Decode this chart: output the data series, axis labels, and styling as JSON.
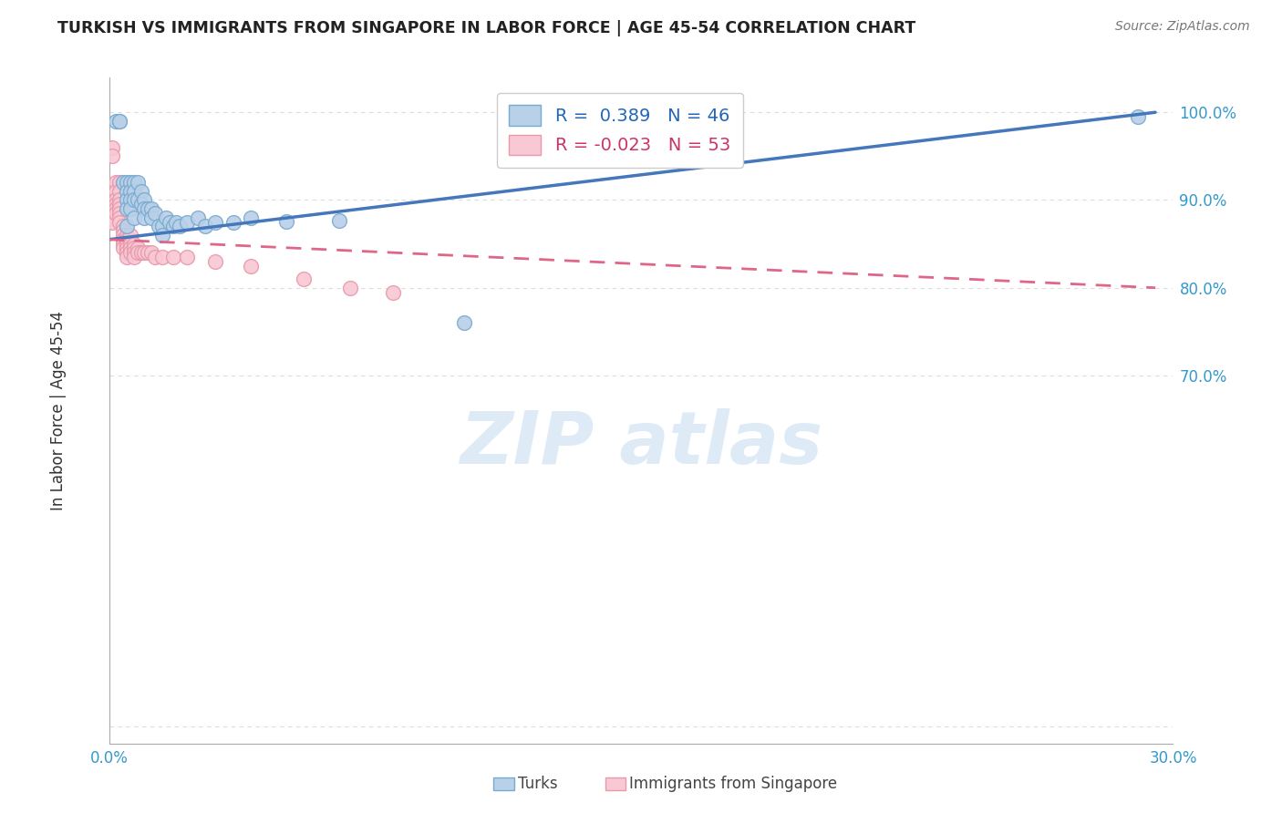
{
  "title": "TURKISH VS IMMIGRANTS FROM SINGAPORE IN LABOR FORCE | AGE 45-54 CORRELATION CHART",
  "source": "Source: ZipAtlas.com",
  "ylabel": "In Labor Force | Age 45-54",
  "xlim": [
    0.0,
    0.3
  ],
  "ylim": [
    0.28,
    1.04
  ],
  "blue_color": "#b8d0e8",
  "blue_edge": "#7aaad0",
  "blue_line": "#4477bb",
  "pink_color": "#f8c8d4",
  "pink_edge": "#e899aa",
  "pink_line": "#e06688",
  "watermark_color": "#c8dff0",
  "turks_x": [
    0.002,
    0.003,
    0.003,
    0.004,
    0.005,
    0.005,
    0.005,
    0.005,
    0.005,
    0.006,
    0.006,
    0.006,
    0.006,
    0.007,
    0.007,
    0.007,
    0.007,
    0.008,
    0.008,
    0.009,
    0.009,
    0.01,
    0.01,
    0.01,
    0.011,
    0.012,
    0.012,
    0.013,
    0.014,
    0.015,
    0.015,
    0.016,
    0.017,
    0.018,
    0.019,
    0.02,
    0.022,
    0.025,
    0.027,
    0.03,
    0.035,
    0.04,
    0.05,
    0.065,
    0.1,
    0.29
  ],
  "turks_y": [
    0.99,
    0.99,
    0.99,
    0.92,
    0.92,
    0.91,
    0.9,
    0.89,
    0.87,
    0.92,
    0.91,
    0.9,
    0.89,
    0.92,
    0.91,
    0.9,
    0.88,
    0.92,
    0.9,
    0.91,
    0.895,
    0.9,
    0.89,
    0.88,
    0.89,
    0.89,
    0.88,
    0.885,
    0.87,
    0.87,
    0.86,
    0.88,
    0.875,
    0.87,
    0.875,
    0.87,
    0.875,
    0.88,
    0.87,
    0.875,
    0.875,
    0.88,
    0.876,
    0.877,
    0.76,
    0.995
  ],
  "singapore_x": [
    0.001,
    0.001,
    0.001,
    0.001,
    0.002,
    0.002,
    0.002,
    0.002,
    0.002,
    0.002,
    0.003,
    0.003,
    0.003,
    0.003,
    0.003,
    0.003,
    0.003,
    0.003,
    0.004,
    0.004,
    0.004,
    0.004,
    0.004,
    0.004,
    0.005,
    0.005,
    0.005,
    0.005,
    0.005,
    0.005,
    0.006,
    0.006,
    0.006,
    0.006,
    0.007,
    0.007,
    0.007,
    0.007,
    0.008,
    0.008,
    0.009,
    0.01,
    0.011,
    0.012,
    0.013,
    0.015,
    0.018,
    0.022,
    0.03,
    0.04,
    0.055,
    0.068,
    0.08
  ],
  "singapore_y": [
    0.96,
    0.95,
    0.88,
    0.875,
    0.92,
    0.91,
    0.9,
    0.895,
    0.89,
    0.885,
    0.92,
    0.91,
    0.9,
    0.895,
    0.89,
    0.885,
    0.88,
    0.875,
    0.87,
    0.865,
    0.86,
    0.855,
    0.85,
    0.845,
    0.86,
    0.855,
    0.85,
    0.845,
    0.84,
    0.835,
    0.86,
    0.85,
    0.845,
    0.84,
    0.85,
    0.845,
    0.84,
    0.835,
    0.845,
    0.84,
    0.84,
    0.84,
    0.84,
    0.84,
    0.835,
    0.835,
    0.835,
    0.835,
    0.83,
    0.825,
    0.81,
    0.8,
    0.795
  ],
  "blue_line_x0": 0.0,
  "blue_line_x1": 0.295,
  "blue_line_y0": 0.855,
  "blue_line_y1": 1.0,
  "pink_line_x0": 0.0,
  "pink_line_x1": 0.295,
  "pink_line_y0": 0.855,
  "pink_line_y1": 0.8,
  "ytick_positions": [
    0.3,
    0.7,
    0.8,
    0.9,
    1.0
  ],
  "ytick_labels": [
    "",
    "70.0%",
    "80.0%",
    "90.0%",
    "100.0%"
  ],
  "xtick_positions": [
    0.0,
    0.05,
    0.1,
    0.15,
    0.2,
    0.25,
    0.3
  ],
  "xtick_labels": [
    "0.0%",
    "",
    "",
    "",
    "",
    "",
    "30.0%"
  ]
}
